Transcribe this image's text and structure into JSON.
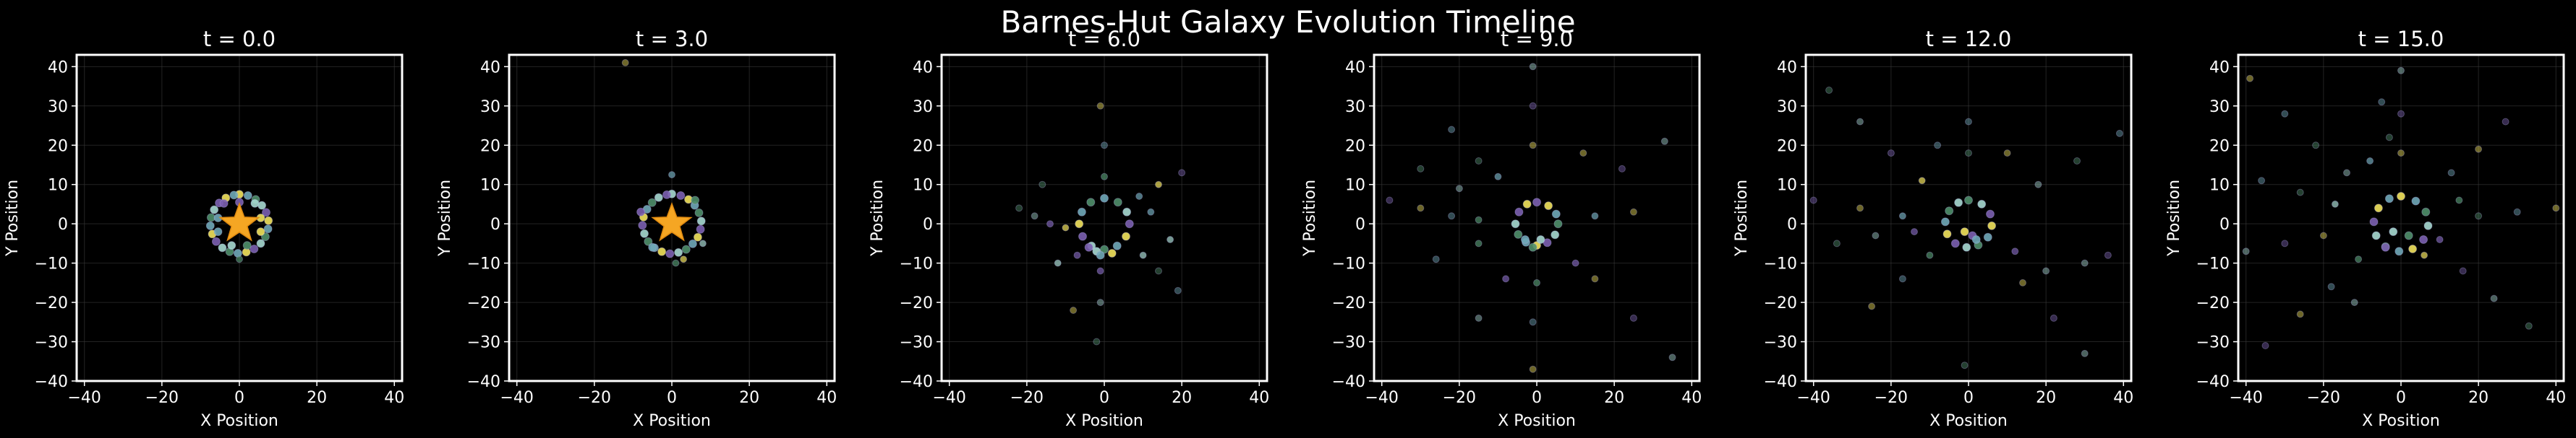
{
  "figure": {
    "title": "Barnes-Hut Galaxy Evolution Timeline",
    "background": "#000000",
    "star_color": "#f5a623",
    "point_colors": [
      "#f2e35b",
      "#a6d9d0",
      "#6fa8b8",
      "#7b5fb0",
      "#4f8f6a"
    ]
  },
  "chart_data": [
    {
      "type": "scatter",
      "title": "t = 0.0",
      "xlabel": "X Position",
      "ylabel": "Y Position",
      "xlim": [
        -42,
        42
      ],
      "ylim": [
        -40,
        43
      ],
      "xticks": [
        -40,
        -20,
        0,
        20,
        40
      ],
      "yticks": [
        -40,
        -30,
        -20,
        -10,
        0,
        10,
        20,
        30,
        40
      ],
      "grid": true,
      "center_marker": "star",
      "points": [
        [
          0,
          7.5
        ],
        [
          2.2,
          7.2
        ],
        [
          4.2,
          6.2
        ],
        [
          5.8,
          4.7
        ],
        [
          6.9,
          2.9
        ],
        [
          7.5,
          0.8
        ],
        [
          7.4,
          -1.3
        ],
        [
          6.7,
          -3.3
        ],
        [
          5.5,
          -5
        ],
        [
          3.8,
          -6.4
        ],
        [
          1.8,
          -7.2
        ],
        [
          -0.4,
          -7.5
        ],
        [
          -2.5,
          -7.1
        ],
        [
          -4.4,
          -6.1
        ],
        [
          -6,
          -4.5
        ],
        [
          -7,
          -2.6
        ],
        [
          -7.5,
          -0.5
        ],
        [
          -7.3,
          1.6
        ],
        [
          -6.5,
          3.6
        ],
        [
          -5.2,
          5.3
        ],
        [
          -3.5,
          6.6
        ],
        [
          -1.4,
          7.3
        ],
        [
          0,
          -9
        ],
        [
          4,
          5.2
        ],
        [
          -4,
          5.2
        ],
        [
          5.5,
          -2
        ],
        [
          -5.5,
          -2
        ],
        [
          2,
          -5.5
        ],
        [
          -2,
          -5.5
        ],
        [
          0,
          5.5
        ],
        [
          5.5,
          1.5
        ],
        [
          -5.5,
          1.5
        ]
      ]
    },
    {
      "type": "scatter",
      "title": "t = 3.0",
      "xlabel": "X Position",
      "ylabel": "Y Position",
      "xlim": [
        -42,
        42
      ],
      "ylim": [
        -40,
        43
      ],
      "xticks": [
        -40,
        -20,
        0,
        20,
        40
      ],
      "yticks": [
        -40,
        -30,
        -20,
        -10,
        0,
        10,
        20,
        30,
        40
      ],
      "grid": true,
      "center_marker": "star",
      "points": [
        [
          0,
          7.6
        ],
        [
          2.3,
          7.2
        ],
        [
          4.3,
          6.2
        ],
        [
          5.9,
          4.7
        ],
        [
          7,
          2.8
        ],
        [
          7.6,
          0.7
        ],
        [
          7.4,
          -1.4
        ],
        [
          6.7,
          -3.4
        ],
        [
          5.4,
          -5.1
        ],
        [
          3.7,
          -6.5
        ],
        [
          1.7,
          -7.3
        ],
        [
          -0.5,
          -7.6
        ],
        [
          -2.6,
          -7.1
        ],
        [
          -4.5,
          -6.1
        ],
        [
          -6.1,
          -4.5
        ],
        [
          -7.1,
          -2.5
        ],
        [
          -7.6,
          -0.4
        ],
        [
          -7.3,
          1.7
        ],
        [
          -6.4,
          3.7
        ],
        [
          -5.1,
          5.4
        ],
        [
          -3.4,
          6.7
        ],
        [
          -1.3,
          7.4
        ],
        [
          -12,
          41
        ],
        [
          0,
          12.5
        ],
        [
          6,
          6
        ],
        [
          8,
          -5
        ],
        [
          -8,
          3
        ],
        [
          3,
          -9
        ],
        [
          -5,
          -6
        ],
        [
          1,
          -10
        ]
      ]
    },
    {
      "type": "scatter",
      "title": "t = 6.0",
      "xlabel": "X Position",
      "ylabel": "Y Position",
      "xlim": [
        -42,
        42
      ],
      "ylim": [
        -40,
        43
      ],
      "xticks": [
        -40,
        -20,
        0,
        20,
        40
      ],
      "yticks": [
        -40,
        -30,
        -20,
        -10,
        0,
        10,
        20,
        30,
        40
      ],
      "grid": true,
      "center_marker": "none",
      "points": [
        [
          0,
          6.5
        ],
        [
          3.5,
          5.5
        ],
        [
          5.8,
          3
        ],
        [
          6.5,
          0
        ],
        [
          5.6,
          -3.2
        ],
        [
          3.3,
          -5.6
        ],
        [
          0,
          -6.5
        ],
        [
          -3.3,
          -5.6
        ],
        [
          -5.6,
          -3.2
        ],
        [
          -6.5,
          0
        ],
        [
          -5.8,
          3
        ],
        [
          -3.5,
          5.5
        ],
        [
          -2,
          -7
        ],
        [
          -4,
          -6
        ],
        [
          2,
          -7.5
        ],
        [
          -1,
          -8
        ],
        [
          -22,
          4
        ],
        [
          -18,
          2
        ],
        [
          -14,
          0
        ],
        [
          -10,
          -1
        ],
        [
          19,
          -17
        ],
        [
          14,
          -12
        ],
        [
          10,
          -8
        ],
        [
          20,
          13
        ],
        [
          14,
          10
        ],
        [
          9,
          7
        ],
        [
          -2,
          -30
        ],
        [
          -1,
          -20
        ],
        [
          -1,
          -12
        ],
        [
          -1,
          30
        ],
        [
          0,
          20
        ],
        [
          0,
          12
        ],
        [
          -12,
          -10
        ],
        [
          -7,
          -8
        ],
        [
          -8,
          -22
        ],
        [
          12,
          3
        ],
        [
          -16,
          10
        ],
        [
          17,
          -4
        ]
      ]
    },
    {
      "type": "scatter",
      "title": "t = 9.0",
      "xlabel": "X Position",
      "ylabel": "Y Position",
      "xlim": [
        -42,
        42
      ],
      "ylim": [
        -40,
        43
      ],
      "xticks": [
        -40,
        -20,
        0,
        20,
        40
      ],
      "yticks": [
        -40,
        -30,
        -20,
        -10,
        0,
        10,
        20,
        30,
        40
      ],
      "grid": true,
      "center_marker": "none",
      "points": [
        [
          0,
          5.5
        ],
        [
          3,
          4.6
        ],
        [
          5,
          2.5
        ],
        [
          5.5,
          0
        ],
        [
          4.7,
          -2.8
        ],
        [
          2.7,
          -4.8
        ],
        [
          0,
          -5.5
        ],
        [
          -2.8,
          -4.7
        ],
        [
          -4.8,
          -2.7
        ],
        [
          -5.5,
          0
        ],
        [
          -4.6,
          3
        ],
        [
          -2.5,
          5
        ],
        [
          -3,
          -4
        ],
        [
          -1,
          -6
        ],
        [
          1,
          -4
        ],
        [
          -38,
          6
        ],
        [
          -30,
          4
        ],
        [
          -22,
          2
        ],
        [
          -15,
          1
        ],
        [
          35,
          -34
        ],
        [
          25,
          -24
        ],
        [
          15,
          -14
        ],
        [
          -22,
          24
        ],
        [
          -15,
          16
        ],
        [
          33,
          21
        ],
        [
          22,
          14
        ],
        [
          -1,
          -37
        ],
        [
          -1,
          -25
        ],
        [
          0,
          -15
        ],
        [
          -1,
          40
        ],
        [
          -1,
          30
        ],
        [
          -1,
          20
        ],
        [
          -26,
          -9
        ],
        [
          -15,
          -5
        ],
        [
          -15,
          -24
        ],
        [
          -8,
          -14
        ],
        [
          25,
          3
        ],
        [
          15,
          2
        ],
        [
          -30,
          14
        ],
        [
          -20,
          9
        ],
        [
          10,
          -10
        ],
        [
          12,
          18
        ],
        [
          -10,
          12
        ]
      ]
    },
    {
      "type": "scatter",
      "title": "t = 12.0",
      "xlabel": "X Position",
      "ylabel": "Y Position",
      "xlim": [
        -42,
        42
      ],
      "ylim": [
        -40,
        43
      ],
      "xticks": [
        -40,
        -20,
        0,
        20,
        40
      ],
      "yticks": [
        -40,
        -30,
        -20,
        -10,
        0,
        10,
        20,
        30,
        40
      ],
      "grid": true,
      "center_marker": "none",
      "points": [
        [
          0,
          6
        ],
        [
          3.4,
          5
        ],
        [
          5.6,
          2.5
        ],
        [
          6,
          -0.5
        ],
        [
          5,
          -3.4
        ],
        [
          2.5,
          -5.4
        ],
        [
          -0.5,
          -6
        ],
        [
          -3.4,
          -5
        ],
        [
          -5.5,
          -2.6
        ],
        [
          -6,
          0.5
        ],
        [
          -5,
          3.3
        ],
        [
          -2.6,
          5.4
        ],
        [
          1,
          -3
        ],
        [
          -1,
          -2
        ],
        [
          2,
          -4
        ],
        [
          -36,
          34
        ],
        [
          -28,
          26
        ],
        [
          -20,
          18
        ],
        [
          -12,
          11
        ],
        [
          39,
          23
        ],
        [
          28,
          16
        ],
        [
          18,
          10
        ],
        [
          -40,
          6
        ],
        [
          -28,
          4
        ],
        [
          -17,
          2
        ],
        [
          -34,
          -5
        ],
        [
          -24,
          -3
        ],
        [
          -14,
          -2
        ],
        [
          -25,
          -21
        ],
        [
          -17,
          -14
        ],
        [
          -10,
          -8
        ],
        [
          30,
          -33
        ],
        [
          22,
          -24
        ],
        [
          14,
          -15
        ],
        [
          0,
          26
        ],
        [
          0,
          18
        ],
        [
          20,
          -12
        ],
        [
          12,
          -7
        ],
        [
          10,
          18
        ],
        [
          -8,
          20
        ],
        [
          -1,
          -36
        ],
        [
          30,
          -10
        ],
        [
          36,
          -8
        ]
      ]
    },
    {
      "type": "scatter",
      "title": "t = 15.0",
      "xlabel": "X Position",
      "ylabel": "Y Position",
      "xlim": [
        -42,
        42
      ],
      "ylim": [
        -40,
        43
      ],
      "xticks": [
        -40,
        -20,
        0,
        20,
        40
      ],
      "yticks": [
        -40,
        -30,
        -20,
        -10,
        0,
        10,
        20,
        30,
        40
      ],
      "grid": true,
      "center_marker": "none",
      "points": [
        [
          0,
          7
        ],
        [
          3.8,
          5.8
        ],
        [
          6.4,
          3
        ],
        [
          7,
          -0.5
        ],
        [
          5.8,
          -4
        ],
        [
          3,
          -6.4
        ],
        [
          -0.5,
          -7
        ],
        [
          -4,
          -5.8
        ],
        [
          -6.4,
          -3
        ],
        [
          -7,
          0.5
        ],
        [
          -5.8,
          4
        ],
        [
          -3,
          6.4
        ],
        [
          2,
          -3
        ],
        [
          -2,
          -2
        ],
        [
          -4,
          -6
        ],
        [
          -39,
          37
        ],
        [
          -30,
          28
        ],
        [
          -22,
          20
        ],
        [
          -14,
          13
        ],
        [
          -35,
          -31
        ],
        [
          -26,
          -23
        ],
        [
          -18,
          -16
        ],
        [
          -11,
          -9
        ],
        [
          -40,
          -7
        ],
        [
          -30,
          -5
        ],
        [
          -20,
          -3
        ],
        [
          -36,
          11
        ],
        [
          -26,
          8
        ],
        [
          -17,
          5
        ],
        [
          27,
          26
        ],
        [
          20,
          19
        ],
        [
          13,
          13
        ],
        [
          33,
          -26
        ],
        [
          24,
          -19
        ],
        [
          16,
          -12
        ],
        [
          40,
          4
        ],
        [
          30,
          3
        ],
        [
          20,
          2
        ],
        [
          0,
          39
        ],
        [
          0,
          28
        ],
        [
          0,
          18
        ],
        [
          -5,
          31
        ],
        [
          -3,
          22
        ],
        [
          -12,
          -20
        ],
        [
          10,
          -4
        ],
        [
          6,
          -8
        ],
        [
          -8,
          16
        ],
        [
          15,
          6
        ]
      ]
    }
  ]
}
